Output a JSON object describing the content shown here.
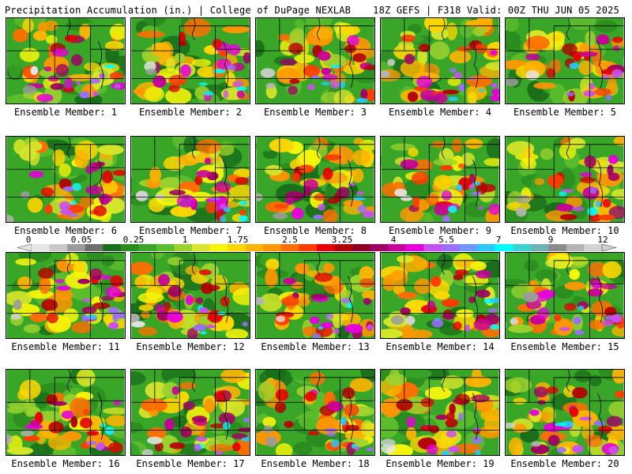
{
  "header": {
    "left_title": "Precipitation Accumulation (in.) | College of DuPage NEXLAB",
    "right_title": "18Z GEFS | F318 Valid: 00Z THU JUN 05 2025"
  },
  "colorbar": {
    "labels": [
      "0",
      "0.05",
      "0.25",
      "1",
      "1.75",
      "2.5",
      "3.25",
      "4",
      "5.5",
      "7",
      "9",
      "12"
    ],
    "colors": [
      "#e6e6e6",
      "#c8c8c8",
      "#9b9b9b",
      "#6e6e6e",
      "#1a6e1a",
      "#2a8c1e",
      "#3aa628",
      "#5cbd2c",
      "#9bd22e",
      "#d7e62a",
      "#f5f50a",
      "#ffd700",
      "#ffb400",
      "#ff9600",
      "#ff6e00",
      "#ff3c00",
      "#e60000",
      "#b40000",
      "#8c0028",
      "#a00064",
      "#c8009b",
      "#e600dc",
      "#c850f0",
      "#9b6eff",
      "#6e96ff",
      "#28c8ff",
      "#00ffff",
      "#3cd2d2",
      "#6eb4b4",
      "#8c8c8c",
      "#b4b4b4",
      "#d2d2d2"
    ]
  },
  "members": [
    {
      "label": "Ensemble Member: 1"
    },
    {
      "label": "Ensemble Member: 2"
    },
    {
      "label": "Ensemble Member: 3"
    },
    {
      "label": "Ensemble Member: 4"
    },
    {
      "label": "Ensemble Member: 5"
    },
    {
      "label": "Ensemble Member: 6"
    },
    {
      "label": "Ensemble Member: 7"
    },
    {
      "label": "Ensemble Member: 8"
    },
    {
      "label": "Ensemble Member: 9"
    },
    {
      "label": "Ensemble Member: 10"
    },
    {
      "label": "Ensemble Member: 11"
    },
    {
      "label": "Ensemble Member: 12"
    },
    {
      "label": "Ensemble Member: 13"
    },
    {
      "label": "Ensemble Member: 14"
    },
    {
      "label": "Ensemble Member: 15"
    },
    {
      "label": "Ensemble Member: 16"
    },
    {
      "label": "Ensemble Member: 17"
    },
    {
      "label": "Ensemble Member: 18"
    },
    {
      "label": "Ensemble Member: 19"
    },
    {
      "label": "Ensemble Member: 20"
    }
  ]
}
